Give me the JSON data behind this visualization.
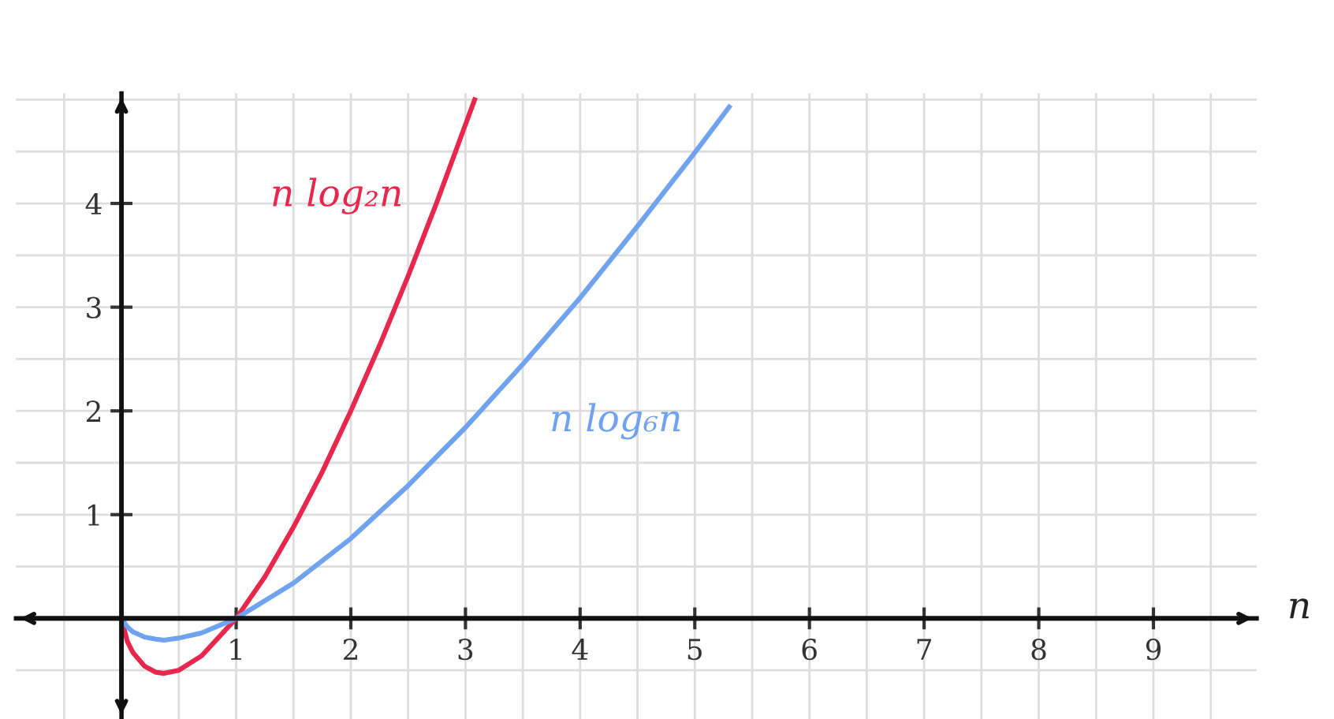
{
  "chart_data": {
    "type": "line",
    "xlabel": "n",
    "xlim": [
      -0.92,
      9.9
    ],
    "ylim": [
      -0.97,
      5.06
    ],
    "xticks": [
      1,
      2,
      3,
      4,
      5,
      6,
      7,
      8,
      9
    ],
    "yticks": [
      1,
      2,
      3,
      4
    ],
    "grid": true,
    "legend": false,
    "marker": "none",
    "line_style": "solid",
    "series": [
      {
        "name": "n log₂n",
        "color": "#e8274d",
        "x": [
          0,
          0.05,
          0.1,
          0.2,
          0.3,
          0.37,
          0.5,
          0.7,
          1,
          1.25,
          1.5,
          1.75,
          2,
          2.25,
          2.5,
          2.75,
          3,
          3.08
        ],
        "values": [
          0,
          -0.22,
          -0.33,
          -0.46,
          -0.52,
          -0.53,
          -0.5,
          -0.36,
          0,
          0.4,
          0.88,
          1.41,
          2,
          2.63,
          3.3,
          4.01,
          4.76,
          5.0
        ]
      },
      {
        "name": "n log₆n",
        "color": "#6fa3f0",
        "x": [
          0,
          0.05,
          0.1,
          0.2,
          0.3,
          0.37,
          0.5,
          0.7,
          1,
          1.5,
          2,
          2.5,
          3,
          3.5,
          4,
          4.5,
          5,
          5.3
        ],
        "values": [
          0,
          -0.08,
          -0.13,
          -0.18,
          -0.2,
          -0.21,
          -0.19,
          -0.14,
          0,
          0.34,
          0.77,
          1.28,
          1.84,
          2.45,
          3.09,
          3.78,
          4.49,
          4.93
        ]
      }
    ]
  }
}
